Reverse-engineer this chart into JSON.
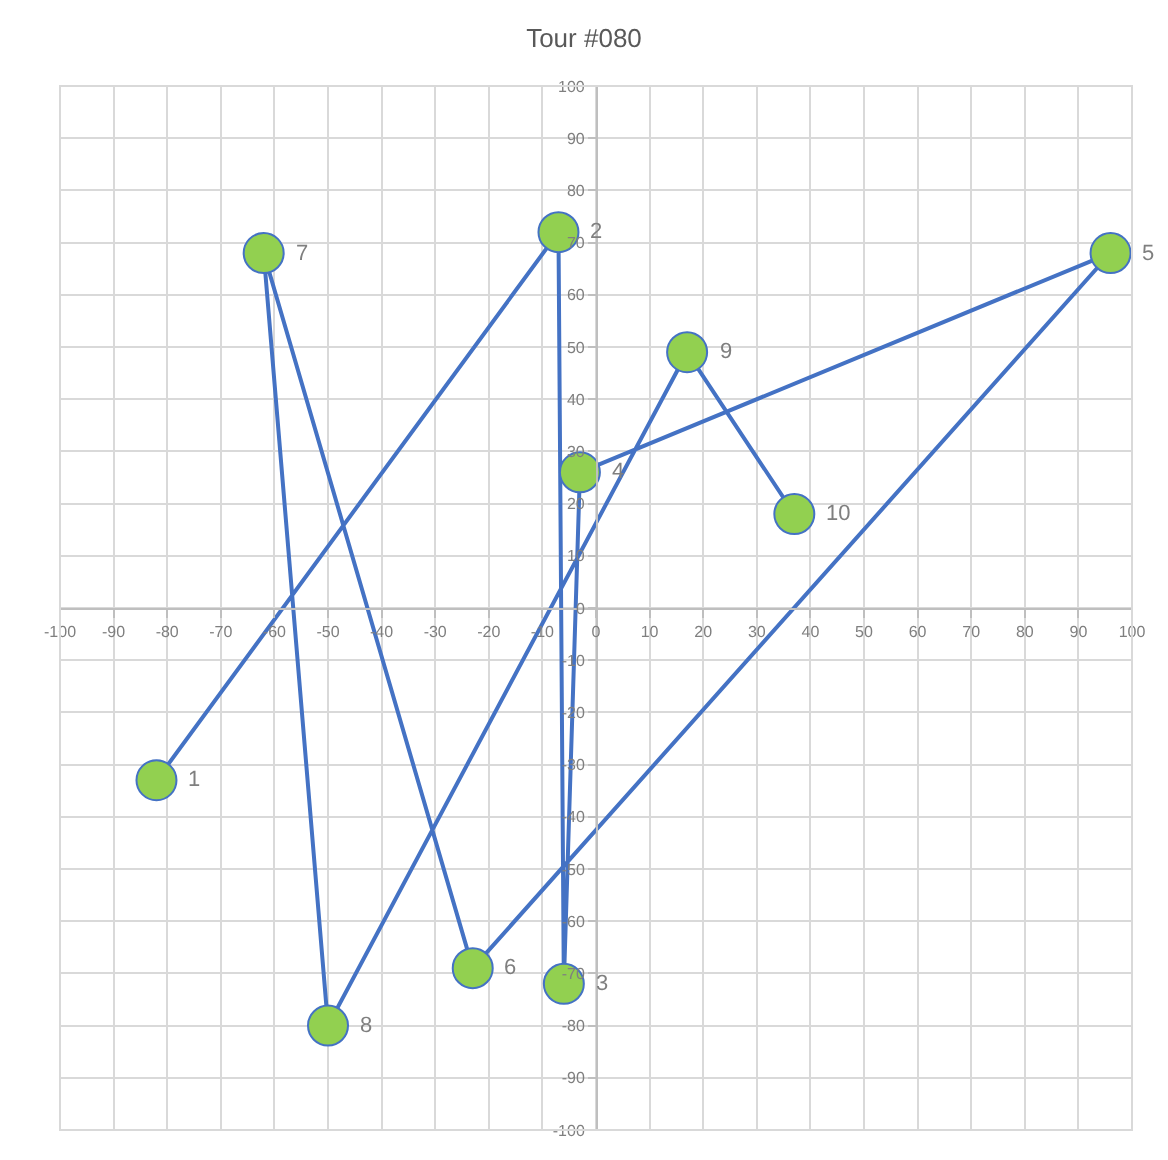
{
  "chart_data": {
    "type": "line",
    "title": "Tour #080",
    "x": [
      -82,
      -7,
      -6,
      -3,
      96,
      -23,
      -62,
      -50,
      17,
      37
    ],
    "series": [
      {
        "color": "#4472c4",
        "colors": [
          "#92d050",
          "#92d050",
          "#92d050",
          "#92d050",
          "#92d050",
          "#92d050",
          "#92d050",
          "#92d050",
          "#92d050",
          "#92d050"
        ],
        "values": [
          -33,
          72,
          -72,
          26,
          68,
          -69,
          68,
          -80,
          49,
          18
        ]
      }
    ],
    "annotations": [
      {
        "text": "1",
        "x": -82,
        "y": -33
      },
      {
        "text": "2",
        "x": -7,
        "y": 72
      },
      {
        "text": "3",
        "x": -6,
        "y": -72
      },
      {
        "text": "4",
        "x": -3,
        "y": 26
      },
      {
        "text": "5",
        "x": 96,
        "y": 68
      },
      {
        "text": "6",
        "x": -23,
        "y": -69
      },
      {
        "text": "7",
        "x": -62,
        "y": 68
      },
      {
        "text": "8",
        "x": -50,
        "y": -80
      },
      {
        "text": "9",
        "x": 17,
        "y": 49
      },
      {
        "text": "10",
        "x": 37,
        "y": 18
      }
    ],
    "xlim": [
      -100,
      100
    ],
    "ylim": [
      -100,
      100
    ],
    "xticks": [
      -100,
      -90,
      -80,
      -70,
      -60,
      -50,
      -40,
      -30,
      -20,
      -10,
      0,
      10,
      20,
      30,
      40,
      50,
      60,
      70,
      80,
      90,
      100
    ],
    "yticks": [
      -100,
      -90,
      -80,
      -70,
      -60,
      -50,
      -40,
      -30,
      -20,
      -10,
      0,
      10,
      20,
      30,
      40,
      50,
      60,
      70,
      80,
      90,
      100
    ],
    "grid": true,
    "marker": "circle",
    "line_style": "solid"
  }
}
